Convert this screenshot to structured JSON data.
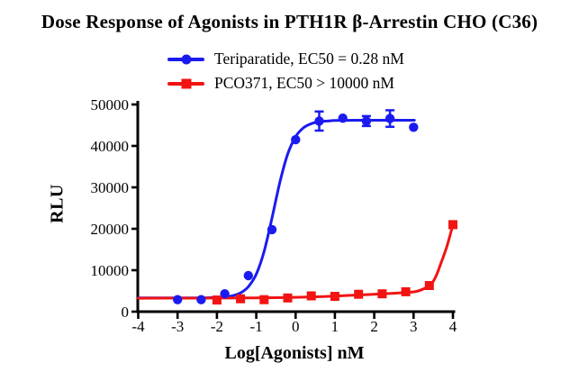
{
  "title": "Dose Response of Agonists in PTH1R β-Arrestin CHO (C36)",
  "chart_data": {
    "type": "scatter",
    "subtype": "dose-response sigmoidal curves with error bars",
    "title": "Dose Response of Agonists in PTH1R β-Arrestin CHO (C36)",
    "xlabel": "Log[Agonists] nM",
    "ylabel": "RLU",
    "xlim": [
      -4,
      4
    ],
    "ylim": [
      0,
      50000
    ],
    "xticks": [
      -4,
      -3,
      -2,
      -1,
      0,
      1,
      2,
      3,
      4
    ],
    "yticks": [
      0,
      10000,
      20000,
      30000,
      40000,
      50000
    ],
    "grid": false,
    "legend_position": "top-center",
    "axis_color": "#000000",
    "series": [
      {
        "name": "Teriparatide",
        "legend_label": "Teriparatide, EC50 = 0.28 nM",
        "ec50_label": "EC50 = 0.28 nM",
        "color": "#1b1bf0",
        "marker": "circle",
        "x": [
          -3,
          -2.4,
          -1.8,
          -1.2,
          -0.6,
          0,
          0.6,
          1.2,
          1.8,
          2.4,
          3
        ],
        "y": [
          2900,
          2900,
          4300,
          8700,
          19800,
          41500,
          46000,
          46700,
          46000,
          46600,
          44500
        ],
        "y_err": [
          0,
          0,
          0,
          0,
          0,
          0,
          2300,
          0,
          1200,
          2000,
          0
        ],
        "fit_curve": [
          [
            -4,
            3300
          ],
          [
            -3.4,
            3301
          ],
          [
            -3,
            3304
          ],
          [
            -2.6,
            3310
          ],
          [
            -2.3,
            3330
          ],
          [
            -2,
            3405
          ],
          [
            -1.8,
            3540
          ],
          [
            -1.6,
            3850
          ],
          [
            -1.4,
            4530
          ],
          [
            -1.2,
            6015
          ],
          [
            -1,
            9050
          ],
          [
            -0.8,
            14540
          ],
          [
            -0.6,
            22540
          ],
          [
            -0.4,
            31210
          ],
          [
            -0.2,
            38050
          ],
          [
            0,
            42220
          ],
          [
            0.2,
            44370
          ],
          [
            0.4,
            45380
          ],
          [
            0.6,
            45840
          ],
          [
            0.8,
            46000
          ],
          [
            1,
            46130
          ],
          [
            1.5,
            46185
          ],
          [
            2,
            46195
          ],
          [
            2.5,
            46200
          ],
          [
            3.02,
            46200
          ]
        ]
      },
      {
        "name": "PCO371",
        "legend_label": "PCO371, EC50 > 10000 nM",
        "ec50_label": "EC50 > 10000 nM",
        "color": "#f21313",
        "marker": "square",
        "x": [
          -2,
          -1.4,
          -0.8,
          -0.2,
          0.4,
          1,
          1.6,
          2.2,
          2.8,
          3.4,
          4
        ],
        "y": [
          2800,
          3100,
          2900,
          3300,
          3800,
          3700,
          4200,
          4300,
          4800,
          6300,
          21000
        ],
        "y_err": [
          0,
          0,
          0,
          0,
          0,
          0,
          0,
          0,
          0,
          0,
          0
        ],
        "fit_curve": [
          [
            -4,
            3250
          ],
          [
            -3,
            3255
          ],
          [
            -2,
            3280
          ],
          [
            -1.4,
            3300
          ],
          [
            -0.8,
            3340
          ],
          [
            -0.2,
            3420
          ],
          [
            0.4,
            3570
          ],
          [
            1,
            3760
          ],
          [
            1.6,
            4020
          ],
          [
            2.2,
            4280
          ],
          [
            2.8,
            4620
          ],
          [
            3.1,
            4950
          ],
          [
            3.4,
            6300
          ],
          [
            3.55,
            8200
          ],
          [
            3.7,
            11800
          ],
          [
            3.85,
            15900
          ],
          [
            4,
            21000
          ]
        ]
      }
    ]
  }
}
